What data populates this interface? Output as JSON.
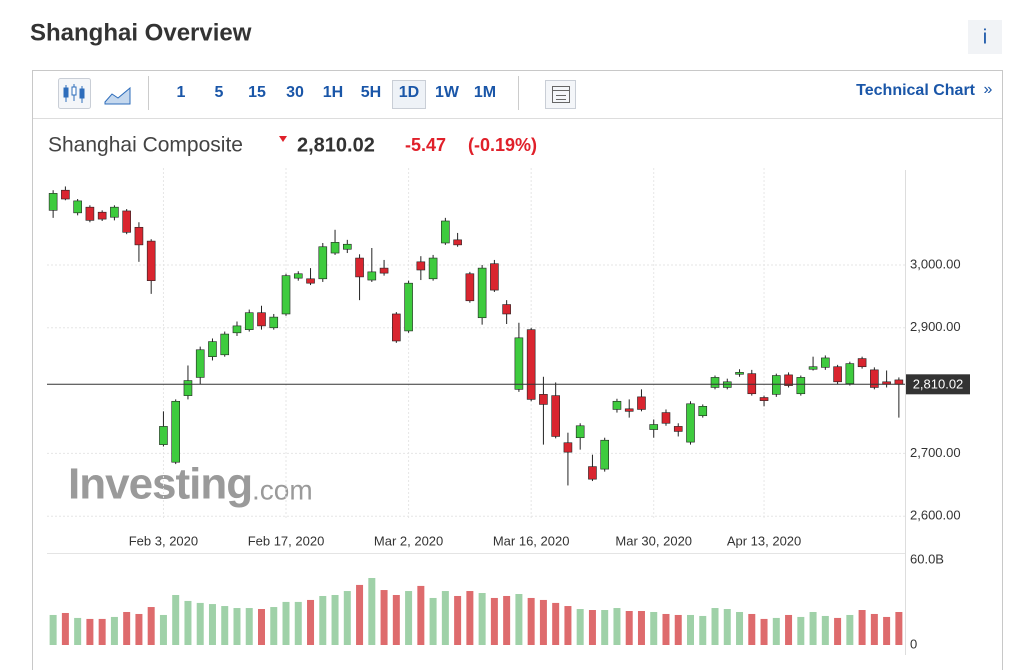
{
  "header": {
    "title": "Shanghai Overview",
    "info": "i"
  },
  "toolbar": {
    "timeframes": [
      "1",
      "5",
      "15",
      "30",
      "1H",
      "5H",
      "1D",
      "1W",
      "1M"
    ],
    "active": 6,
    "link": "Technical Chart",
    "link_arrow": "»"
  },
  "quote": {
    "name": "Shanghai Composite",
    "price": "2,810.02",
    "change": "-5.47",
    "change_pct": "(-0.19%)"
  },
  "chart_data": {
    "type": "candlestick",
    "categories": [
      null,
      null,
      null,
      null,
      null,
      null,
      null,
      null,
      null,
      "Feb 3, 2020",
      null,
      null,
      null,
      null,
      null,
      null,
      null,
      null,
      null,
      "Feb 17, 2020",
      null,
      null,
      null,
      null,
      null,
      null,
      null,
      null,
      null,
      "Mar 2, 2020",
      null,
      null,
      null,
      null,
      null,
      null,
      null,
      null,
      null,
      "Mar 16, 2020",
      null,
      null,
      null,
      null,
      null,
      null,
      null,
      null,
      null,
      "Mar 30, 2020",
      null,
      null,
      null,
      null,
      null,
      null,
      null,
      null,
      "Apr 13, 2020",
      null,
      null,
      null,
      null,
      null,
      null,
      null,
      null,
      null,
      null,
      null
    ],
    "open": [
      3087,
      3119,
      3083,
      3092,
      3084,
      3076,
      3086,
      3060,
      3038,
      2714,
      2686,
      2792,
      2821,
      2854,
      2857,
      2892,
      2897,
      2924,
      2900,
      2922,
      2979,
      2978,
      2978,
      3019,
      3025,
      3011,
      2976,
      2995,
      2922,
      2895,
      3005,
      2978,
      3035,
      3040,
      2986,
      2916,
      3002,
      2937,
      2802,
      2897,
      2794,
      2792,
      2717,
      2725,
      2679,
      2675,
      2770,
      2771,
      2790,
      2738,
      2765,
      2743,
      2718,
      2760,
      2805,
      2805,
      2826,
      2827,
      2789,
      2794,
      2825,
      2795,
      2834,
      2837,
      2838,
      2811,
      2851,
      2833,
      2814,
      2817
    ],
    "high": [
      3119,
      3125,
      3105,
      3095,
      3087,
      3095,
      3089,
      3068,
      3041,
      2767,
      2786,
      2840,
      2870,
      2883,
      2894,
      2910,
      2929,
      2935,
      2922,
      2986,
      2990,
      2995,
      3035,
      3056,
      3040,
      3017,
      3027,
      3008,
      2925,
      2975,
      3014,
      3016,
      3075,
      3051,
      2989,
      3000,
      3008,
      2944,
      2908,
      2900,
      2822,
      2813,
      2733,
      2748,
      2698,
      2725,
      2787,
      2786,
      2802,
      2754,
      2770,
      2748,
      2783,
      2778,
      2824,
      2819,
      2834,
      2833,
      2792,
      2827,
      2829,
      2824,
      2854,
      2856,
      2841,
      2846,
      2854,
      2837,
      2832,
      2821
    ],
    "low": [
      3075,
      3103,
      3079,
      3068,
      3070,
      3071,
      3049,
      3005,
      2954,
      2711,
      2683,
      2786,
      2810,
      2848,
      2854,
      2887,
      2894,
      2897,
      2897,
      2919,
      2975,
      2968,
      2973,
      3016,
      3019,
      2944,
      2973,
      2983,
      2876,
      2892,
      2976,
      2975,
      3032,
      3029,
      2940,
      2905,
      2957,
      2906,
      2798,
      2783,
      2714,
      2724,
      2649,
      2706,
      2656,
      2671,
      2765,
      2757,
      2767,
      2725,
      2744,
      2727,
      2714,
      2757,
      2802,
      2802,
      2822,
      2792,
      2775,
      2790,
      2805,
      2792,
      2832,
      2833,
      2810,
      2808,
      2835,
      2802,
      2805,
      2757
    ],
    "close": [
      3114,
      3105,
      3102,
      3071,
      3073,
      3092,
      3052,
      3032,
      2975,
      2743,
      2783,
      2816,
      2865,
      2878,
      2890,
      2903,
      2924,
      2903,
      2917,
      2983,
      2986,
      2971,
      3029,
      3036,
      3033,
      2981,
      2989,
      2987,
      2879,
      2971,
      2992,
      3011,
      3070,
      3032,
      2943,
      2995,
      2960,
      2922,
      2884,
      2786,
      2778,
      2727,
      2702,
      2744,
      2659,
      2721,
      2783,
      2767,
      2770,
      2746,
      2748,
      2735,
      2779,
      2775,
      2821,
      2814,
      2829,
      2795,
      2784,
      2824,
      2808,
      2821,
      2838,
      2852,
      2814,
      2843,
      2838,
      2805,
      2810,
      2810.02
    ],
    "up_color": "#3ecb3e",
    "down_color": "#d9252f",
    "ylim": [
      2594,
      3148
    ],
    "yticks": [
      {
        "value": 2600,
        "label": "2,600.00"
      },
      {
        "value": 2700,
        "label": "2,700.00"
      },
      {
        "value": 2900,
        "label": "2,900.00"
      },
      {
        "value": 3000,
        "label": "3,000.00"
      }
    ],
    "grid": true,
    "price_line": {
      "value": 2810.02,
      "label": "2,810.02"
    },
    "volume": {
      "values": [
        21.2,
        22.6,
        19.1,
        18.4,
        18.4,
        19.8,
        23.3,
        21.9,
        26.8,
        21.2,
        35.3,
        31.1,
        29.7,
        28.9,
        27.5,
        26.1,
        26.1,
        25.4,
        26.8,
        30.4,
        30.4,
        31.8,
        34.6,
        35.3,
        38.1,
        42.4,
        47.3,
        38.8,
        35.3,
        38.1,
        41.7,
        33.2,
        38.1,
        34.6,
        38.1,
        36.7,
        33.2,
        34.6,
        36.0,
        33.2,
        31.8,
        29.7,
        27.5,
        25.4,
        24.7,
        24.7,
        26.1,
        24.0,
        24.0,
        23.3,
        21.9,
        21.2,
        21.2,
        20.5,
        26.1,
        25.4,
        23.3,
        21.9,
        18.4,
        19.1,
        21.2,
        19.8,
        23.3,
        20.5,
        19.1,
        21.2,
        24.7,
        21.9,
        19.8,
        23.3
      ],
      "ylim": [
        0,
        60
      ],
      "yticks": [
        0,
        {
          "value": 60,
          "label": "60.0B"
        }
      ],
      "up_color": "#9fd1a8",
      "down_color": "#de6b6d"
    },
    "watermark": {
      "brand": "Investing",
      "suffix": ".com"
    }
  }
}
